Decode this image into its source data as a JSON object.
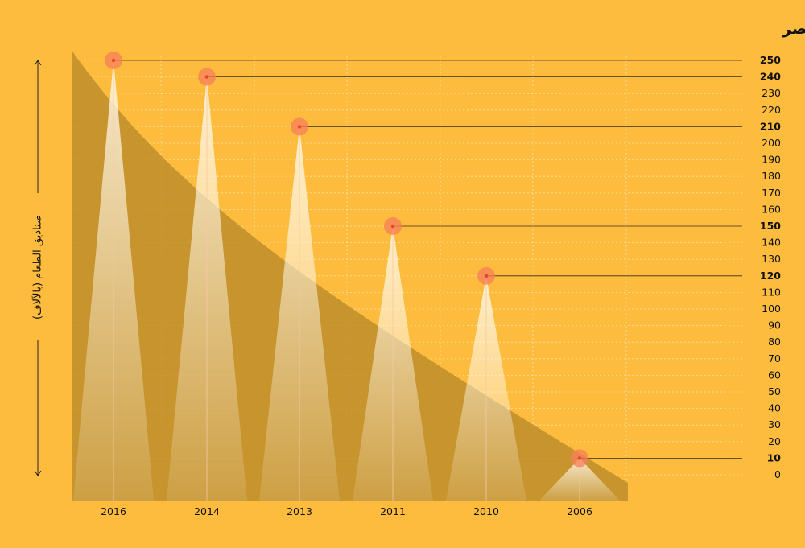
{
  "chart_data": {
    "type": "bar",
    "title": "عدد الصناديق الغذائية التي تم توزيعها شهرياً في مصر",
    "ylabel": "صناديق الطعام (بالآلاف)",
    "xlabel": "",
    "categories": [
      "2016",
      "2014",
      "2013",
      "2011",
      "2010",
      "2006"
    ],
    "values": [
      250,
      240,
      210,
      150,
      120,
      10
    ],
    "ylim": [
      0,
      250
    ],
    "yticks": [
      0,
      10,
      20,
      30,
      40,
      50,
      60,
      70,
      80,
      90,
      100,
      110,
      120,
      130,
      140,
      150,
      160,
      170,
      180,
      190,
      200,
      210,
      220,
      230,
      240,
      250
    ],
    "grid": true,
    "legend": "none",
    "colors": {
      "background": "#FDBC3D",
      "area": "#B98A2A",
      "spike": "#FFF3DC",
      "marker": "#F77F5A",
      "marker_dot": "#E8432C",
      "text": "#111111"
    }
  }
}
